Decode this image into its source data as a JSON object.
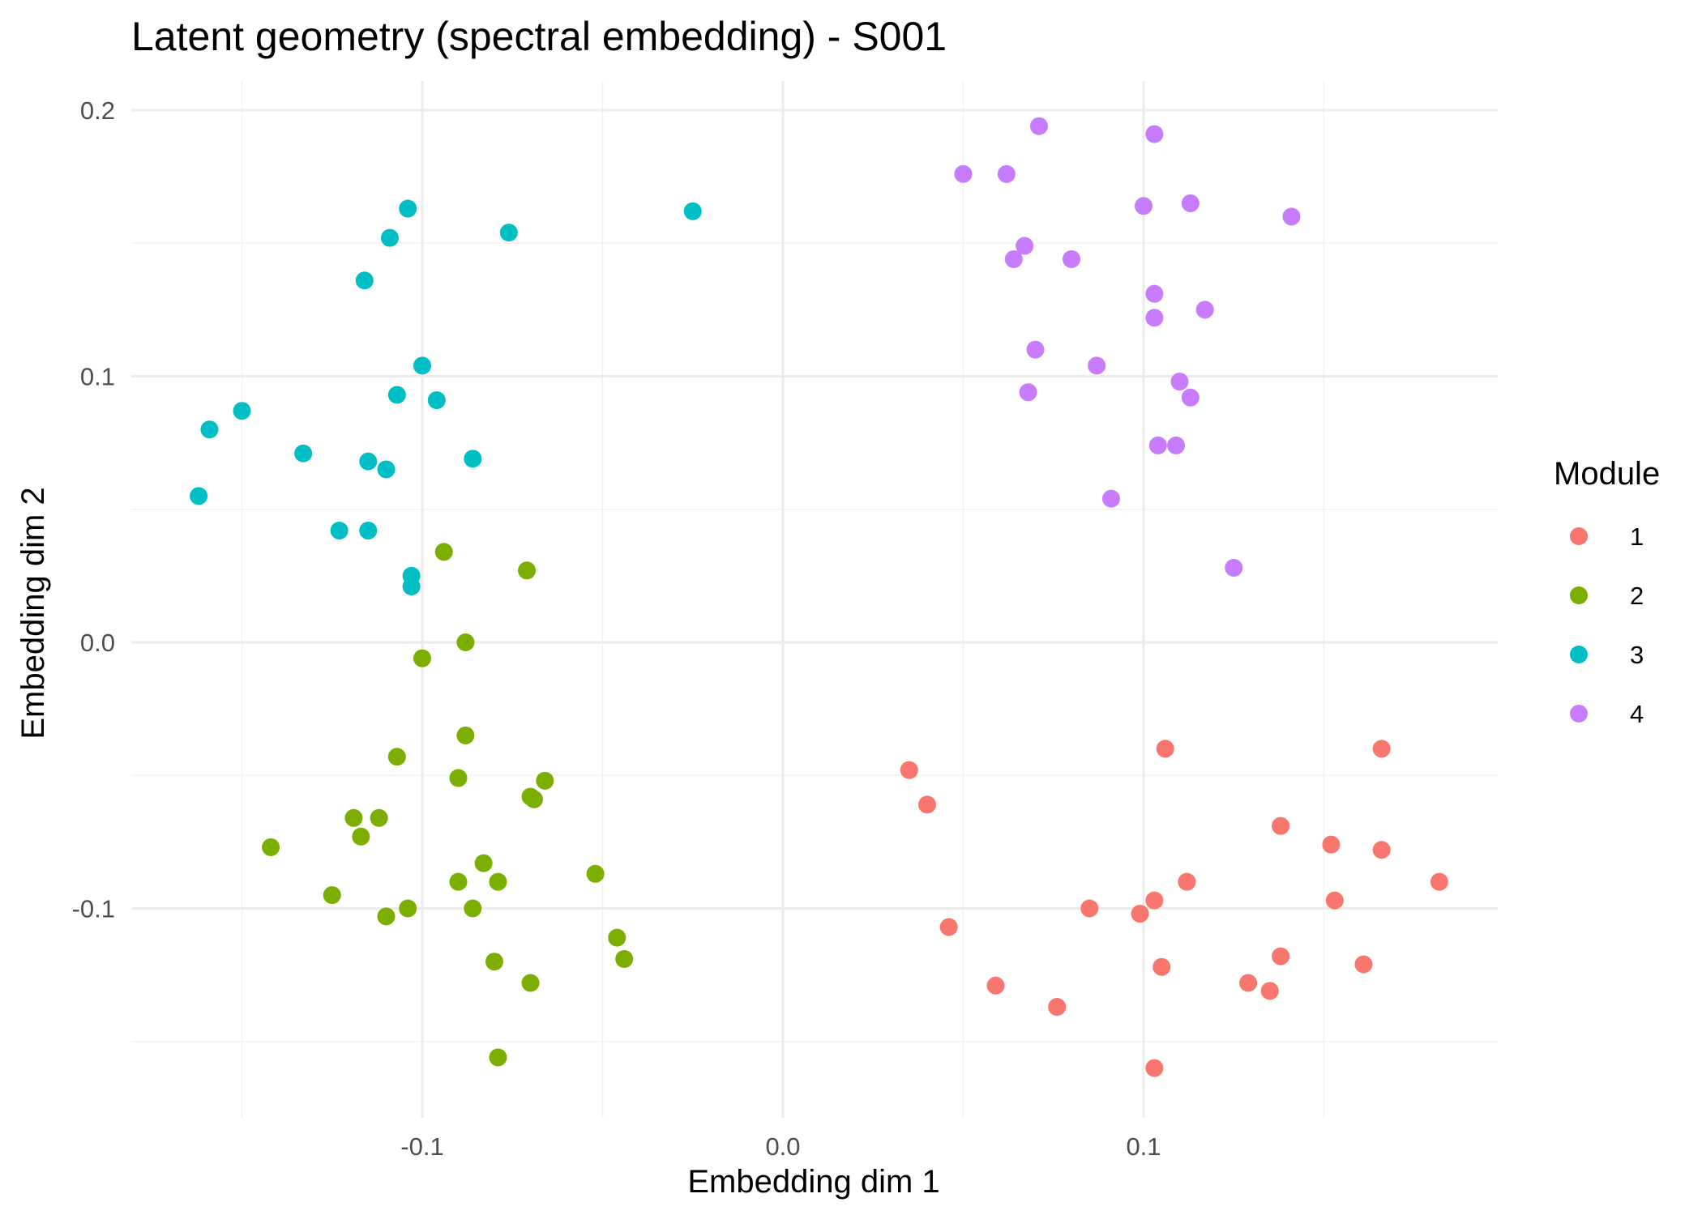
{
  "chart_data": {
    "type": "scatter",
    "title": "Latent geometry (spectral embedding) - S001",
    "xlabel": "Embedding dim 1",
    "ylabel": "Embedding dim 2",
    "xlim": [
      -0.179,
      0.199
    ],
    "ylim": [
      -0.175,
      0.206
    ],
    "x_ticks": [
      -0.1,
      0.0,
      0.1
    ],
    "x_tick_labels": [
      "-0.1",
      "0.0",
      "0.1"
    ],
    "y_ticks": [
      -0.1,
      0.0,
      0.1,
      0.2
    ],
    "y_tick_labels": [
      "-0.1",
      "0.0",
      "0.1",
      "0.2"
    ],
    "grid": true,
    "legend": {
      "title": "Module",
      "position": "right"
    },
    "series": [
      {
        "name": "1",
        "color": "#F8766D",
        "points": [
          {
            "x": 0.035,
            "y": -0.048
          },
          {
            "x": 0.04,
            "y": -0.061
          },
          {
            "x": 0.106,
            "y": -0.04
          },
          {
            "x": 0.166,
            "y": -0.04
          },
          {
            "x": 0.138,
            "y": -0.069
          },
          {
            "x": 0.152,
            "y": -0.076
          },
          {
            "x": 0.166,
            "y": -0.078
          },
          {
            "x": 0.112,
            "y": -0.09
          },
          {
            "x": 0.182,
            "y": -0.09
          },
          {
            "x": 0.085,
            "y": -0.1
          },
          {
            "x": 0.103,
            "y": -0.097
          },
          {
            "x": 0.099,
            "y": -0.102
          },
          {
            "x": 0.153,
            "y": -0.097
          },
          {
            "x": 0.046,
            "y": -0.107
          },
          {
            "x": 0.138,
            "y": -0.118
          },
          {
            "x": 0.105,
            "y": -0.122
          },
          {
            "x": 0.161,
            "y": -0.121
          },
          {
            "x": 0.059,
            "y": -0.129
          },
          {
            "x": 0.129,
            "y": -0.128
          },
          {
            "x": 0.135,
            "y": -0.131
          },
          {
            "x": 0.076,
            "y": -0.137
          },
          {
            "x": 0.103,
            "y": -0.16
          }
        ]
      },
      {
        "name": "2",
        "color": "#7CAE00",
        "points": [
          {
            "x": -0.094,
            "y": 0.034
          },
          {
            "x": -0.071,
            "y": 0.027
          },
          {
            "x": -0.088,
            "y": 0.0
          },
          {
            "x": -0.1,
            "y": -0.006
          },
          {
            "x": -0.088,
            "y": -0.035
          },
          {
            "x": -0.107,
            "y": -0.043
          },
          {
            "x": -0.09,
            "y": -0.051
          },
          {
            "x": -0.066,
            "y": -0.052
          },
          {
            "x": -0.07,
            "y": -0.058
          },
          {
            "x": -0.069,
            "y": -0.059
          },
          {
            "x": -0.119,
            "y": -0.066
          },
          {
            "x": -0.112,
            "y": -0.066
          },
          {
            "x": -0.117,
            "y": -0.073
          },
          {
            "x": -0.142,
            "y": -0.077
          },
          {
            "x": -0.083,
            "y": -0.083
          },
          {
            "x": -0.09,
            "y": -0.09
          },
          {
            "x": -0.079,
            "y": -0.09
          },
          {
            "x": -0.052,
            "y": -0.087
          },
          {
            "x": -0.125,
            "y": -0.095
          },
          {
            "x": -0.104,
            "y": -0.1
          },
          {
            "x": -0.086,
            "y": -0.1
          },
          {
            "x": -0.11,
            "y": -0.103
          },
          {
            "x": -0.046,
            "y": -0.111
          },
          {
            "x": -0.044,
            "y": -0.119
          },
          {
            "x": -0.08,
            "y": -0.12
          },
          {
            "x": -0.07,
            "y": -0.128
          },
          {
            "x": -0.079,
            "y": -0.156
          }
        ]
      },
      {
        "name": "3",
        "color": "#00BFC4",
        "points": [
          {
            "x": -0.104,
            "y": 0.163
          },
          {
            "x": -0.025,
            "y": 0.162
          },
          {
            "x": -0.076,
            "y": 0.154
          },
          {
            "x": -0.109,
            "y": 0.152
          },
          {
            "x": -0.116,
            "y": 0.136
          },
          {
            "x": -0.1,
            "y": 0.104
          },
          {
            "x": -0.107,
            "y": 0.093
          },
          {
            "x": -0.096,
            "y": 0.091
          },
          {
            "x": -0.15,
            "y": 0.087
          },
          {
            "x": -0.159,
            "y": 0.08
          },
          {
            "x": -0.133,
            "y": 0.071
          },
          {
            "x": -0.115,
            "y": 0.068
          },
          {
            "x": -0.086,
            "y": 0.069
          },
          {
            "x": -0.11,
            "y": 0.065
          },
          {
            "x": -0.162,
            "y": 0.055
          },
          {
            "x": -0.123,
            "y": 0.042
          },
          {
            "x": -0.115,
            "y": 0.042
          },
          {
            "x": -0.103,
            "y": 0.025
          },
          {
            "x": -0.103,
            "y": 0.021
          }
        ]
      },
      {
        "name": "4",
        "color": "#C77CFF",
        "points": [
          {
            "x": 0.071,
            "y": 0.194
          },
          {
            "x": 0.103,
            "y": 0.191
          },
          {
            "x": 0.05,
            "y": 0.176
          },
          {
            "x": 0.062,
            "y": 0.176
          },
          {
            "x": 0.1,
            "y": 0.164
          },
          {
            "x": 0.113,
            "y": 0.165
          },
          {
            "x": 0.141,
            "y": 0.16
          },
          {
            "x": 0.067,
            "y": 0.149
          },
          {
            "x": 0.064,
            "y": 0.144
          },
          {
            "x": 0.08,
            "y": 0.144
          },
          {
            "x": 0.103,
            "y": 0.131
          },
          {
            "x": 0.103,
            "y": 0.122
          },
          {
            "x": 0.117,
            "y": 0.125
          },
          {
            "x": 0.07,
            "y": 0.11
          },
          {
            "x": 0.087,
            "y": 0.104
          },
          {
            "x": 0.11,
            "y": 0.098
          },
          {
            "x": 0.068,
            "y": 0.094
          },
          {
            "x": 0.113,
            "y": 0.092
          },
          {
            "x": 0.104,
            "y": 0.074
          },
          {
            "x": 0.109,
            "y": 0.074
          },
          {
            "x": 0.091,
            "y": 0.054
          },
          {
            "x": 0.125,
            "y": 0.028
          }
        ]
      }
    ]
  }
}
